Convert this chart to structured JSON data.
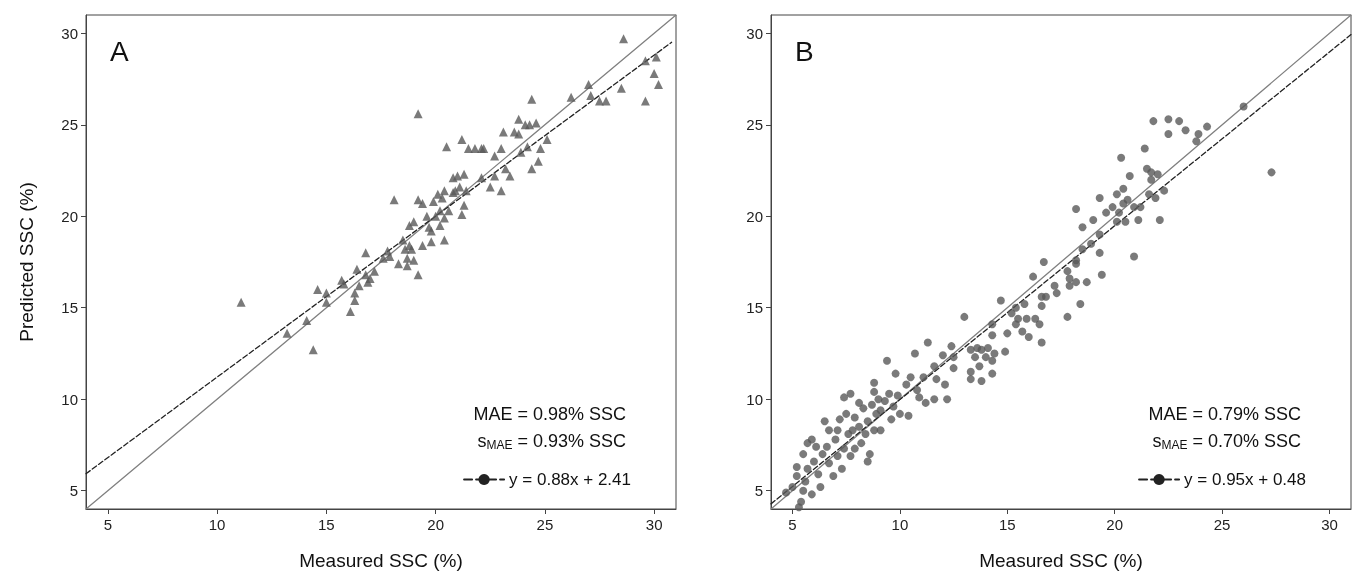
{
  "chart_data": [
    {
      "type": "scatter",
      "title": "A",
      "xlabel": "Measured SSC (%)",
      "ylabel": "Predicted SSC (%)",
      "xlim": [
        4,
        31
      ],
      "ylim": [
        4,
        31
      ],
      "xticks": [
        5,
        10,
        15,
        20,
        25,
        30
      ],
      "yticks": [
        5,
        10,
        15,
        20,
        25,
        30
      ],
      "grid": false,
      "legend": "bottom right",
      "annotations": [
        "MAE = 0.98% SSC",
        "s$_{MAE}$ = 0.93% SSC"
      ],
      "series": [
        {
          "color": "#595959",
          "marker": "triangle",
          "x": [
            11.1,
            13.2,
            14.1,
            14.4,
            14.6,
            15.0,
            15.0,
            15.7,
            15.8,
            16.1,
            16.3,
            16.3,
            16.4,
            16.5,
            16.8,
            16.8,
            16.9,
            17.0,
            17.2,
            17.6,
            17.8,
            17.9,
            18.1,
            18.3,
            18.5,
            18.6,
            18.7,
            18.7,
            18.8,
            18.8,
            18.9,
            19.0,
            19.0,
            19.2,
            19.2,
            19.2,
            19.4,
            19.4,
            19.6,
            19.7,
            19.8,
            19.8,
            19.9,
            20.0,
            20.1,
            20.2,
            20.2,
            20.3,
            20.4,
            20.4,
            20.4,
            20.5,
            20.6,
            20.8,
            20.8,
            20.9,
            21.0,
            21.1,
            21.2,
            21.2,
            21.3,
            21.3,
            21.4,
            21.5,
            21.8,
            22.1,
            22.1,
            22.2,
            22.5,
            22.7,
            22.7,
            23.0,
            23.0,
            23.1,
            23.2,
            23.4,
            23.6,
            23.8,
            23.8,
            23.9,
            24.2,
            24.1,
            24.3,
            24.4,
            24.4,
            24.6,
            24.7,
            24.8,
            25.1,
            26.2,
            27.0,
            27.1,
            27.5,
            27.8,
            28.5,
            28.6,
            29.6,
            29.6,
            30.0,
            30.1,
            30.2
          ],
          "values": [
            15.3,
            13.6,
            14.3,
            12.7,
            16.0,
            15.8,
            15.3,
            16.5,
            16.3,
            14.8,
            15.8,
            15.4,
            17.1,
            16.2,
            18.0,
            16.8,
            16.4,
            16.6,
            17.0,
            17.7,
            18.1,
            17.8,
            20.9,
            17.4,
            18.7,
            18.2,
            17.7,
            17.3,
            18.4,
            19.5,
            18.2,
            17.6,
            19.7,
            25.6,
            20.9,
            16.8,
            20.7,
            18.4,
            20.0,
            19.4,
            18.6,
            19.2,
            20.8,
            20.0,
            21.2,
            20.3,
            19.5,
            21.0,
            21.4,
            19.9,
            18.7,
            23.8,
            20.3,
            21.3,
            22.1,
            21.4,
            22.2,
            21.6,
            24.2,
            20.1,
            20.6,
            22.3,
            21.4,
            23.7,
            23.7,
            23.7,
            22.1,
            23.7,
            21.6,
            23.3,
            22.2,
            23.7,
            21.4,
            24.6,
            22.6,
            22.2,
            24.6,
            25.3,
            24.5,
            23.5,
            23.8,
            25.0,
            25.0,
            26.4,
            22.6,
            25.1,
            23.0,
            23.7,
            24.2,
            26.5,
            27.2,
            26.6,
            26.3,
            26.3,
            27.0,
            29.7,
            28.5,
            26.3,
            27.8,
            28.7,
            27.2
          ]
        },
        {
          "type": "line",
          "color": "#808080",
          "line_style": "solid",
          "x": [
            4,
            31
          ],
          "values": [
            4,
            31
          ]
        },
        {
          "type": "line",
          "name": "y = 0.88x + 2.41",
          "color": "#222222",
          "line_style": "dashed",
          "x": [
            4,
            30.8
          ],
          "values": [
            5.93,
            29.51
          ]
        }
      ]
    },
    {
      "type": "scatter",
      "title": "B",
      "xlabel": "Measured SSC (%)",
      "xlim": [
        4,
        31
      ],
      "ylim": [
        4,
        31
      ],
      "xticks": [
        5,
        10,
        15,
        20,
        25,
        30
      ],
      "yticks": [
        5,
        10,
        15,
        20,
        25,
        30
      ],
      "grid": false,
      "legend": "bottom right",
      "annotations": [
        "MAE = 0.79% SSC",
        "s$_{MAE}$ = 0.70% SSC"
      ],
      "series": [
        {
          "color": "#595959",
          "marker": "circle",
          "x": [
            26.0,
            27.3,
            21.8,
            22.5,
            23.0,
            22.5,
            23.3,
            23.8,
            23.9,
            24.3,
            20.3,
            21.4,
            20.7,
            21.5,
            21.7,
            22.0,
            21.7,
            20.4,
            20.1,
            20.6,
            20.4,
            20.9,
            21.2,
            21.6,
            21.9,
            22.3,
            19.3,
            19.9,
            20.2,
            19.6,
            20.1,
            20.5,
            21.1,
            22.1,
            20.9,
            18.2,
            18.5,
            19.0,
            19.3,
            18.9,
            18.5,
            19.3,
            18.2,
            18.2,
            17.8,
            17.9,
            18.2,
            18.7,
            17.9,
            18.4,
            17.8,
            19.4,
            16.7,
            16.2,
            17.2,
            17.3,
            16.6,
            16.8,
            16.6,
            14.7,
            15.4,
            15.8,
            16.6,
            15.2,
            15.5,
            15.9,
            16.3,
            16.5,
            15.4,
            15.7,
            16.0,
            13.0,
            14.3,
            14.3,
            15.0,
            13.6,
            13.8,
            14.1,
            14.4,
            14.9,
            13.3,
            13.5,
            14.0,
            14.3,
            13.7,
            13.3,
            14.3,
            13.3,
            13.8,
            11.3,
            12.0,
            12.4,
            12.5,
            12.5,
            11.6,
            10.7,
            11.7,
            12.1,
            12.2,
            11.2,
            11.6,
            10.9,
            10.4,
            10.0,
            9.4,
            9.8,
            10.5,
            11.1,
            10.3,
            10.8,
            9.6,
            9.1,
            8.8,
            8.6,
            8.5,
            7.4,
            7.7,
            8.1,
            4.7,
            5.0,
            5.2,
            5.2,
            5.3,
            5.4,
            5.5,
            5.6,
            5.5,
            5.7,
            5.9,
            6.0,
            5.9,
            6.2,
            6.4,
            6.3,
            6.5,
            6.6,
            6.7,
            6.9,
            7.0,
            7.1,
            7.1,
            7.2,
            7.3,
            7.4,
            7.5,
            7.6,
            7.7,
            7.8,
            7.9,
            7.9,
            8.1,
            8.2,
            8.3,
            8.4,
            8.5,
            8.7,
            8.8,
            8.9,
            9.0,
            9.1,
            9.3,
            9.5,
            9.7,
            9.9,
            8.8,
            6.7,
            6.1,
            5.7
          ],
          "values": [
            26.0,
            22.4,
            25.2,
            25.3,
            25.2,
            24.5,
            24.7,
            24.1,
            24.5,
            24.9,
            23.2,
            23.7,
            22.2,
            22.6,
            22.4,
            22.3,
            22.0,
            21.5,
            21.2,
            20.9,
            20.7,
            20.5,
            20.5,
            21.2,
            21.0,
            21.4,
            21.0,
            20.5,
            20.2,
            20.2,
            19.7,
            19.7,
            19.8,
            19.8,
            17.8,
            20.4,
            19.4,
            19.8,
            19.0,
            18.5,
            18.2,
            18.0,
            17.6,
            17.4,
            17.0,
            16.6,
            16.4,
            16.4,
            16.2,
            15.2,
            14.5,
            16.8,
            17.5,
            16.7,
            16.2,
            15.8,
            15.6,
            15.6,
            15.1,
            15.4,
            15.0,
            15.2,
            13.1,
            14.7,
            14.4,
            14.4,
            14.4,
            14.1,
            14.1,
            13.7,
            13.4,
            14.5,
            14.1,
            13.5,
            13.6,
            12.8,
            12.7,
            12.8,
            12.5,
            12.6,
            12.7,
            12.3,
            12.3,
            12.1,
            11.8,
            11.5,
            11.4,
            11.1,
            11.0,
            13.1,
            12.4,
            12.9,
            12.3,
            11.7,
            11.8,
            12.5,
            11.1,
            10.8,
            10.0,
            9.8,
            10.0,
            10.1,
            9.1,
            9.2,
            12.1,
            11.4,
            11.2,
            11.2,
            10.8,
            10.5,
            8.9,
            8.3,
            10.9,
            7.0,
            6.6,
            10.1,
            10.3,
            9.8,
            4.9,
            5.2,
            5.8,
            6.3,
            4.1,
            4.4,
            5.0,
            5.5,
            7.0,
            6.2,
            4.8,
            6.6,
            7.8,
            5.9,
            7.0,
            5.2,
            8.8,
            7.4,
            6.5,
            5.8,
            7.8,
            8.3,
            6.9,
            8.9,
            6.2,
            7.3,
            9.2,
            8.1,
            6.9,
            8.3,
            9.0,
            7.3,
            8.5,
            7.6,
            9.5,
            8.1,
            8.8,
            9.7,
            8.3,
            9.2,
            10.0,
            9.4,
            9.9,
            10.3,
            9.6,
            10.2,
            10.4,
            8.3,
            7.4,
            7.6
          ]
        },
        {
          "type": "line",
          "color": "#808080",
          "line_style": "solid",
          "x": [
            4,
            31
          ],
          "values": [
            4,
            31
          ]
        },
        {
          "type": "line",
          "name": "y = 0.95x + 0.48",
          "color": "#222222",
          "line_style": "dashed",
          "x": [
            4,
            31
          ],
          "values": [
            4.28,
            29.93
          ]
        }
      ]
    }
  ]
}
